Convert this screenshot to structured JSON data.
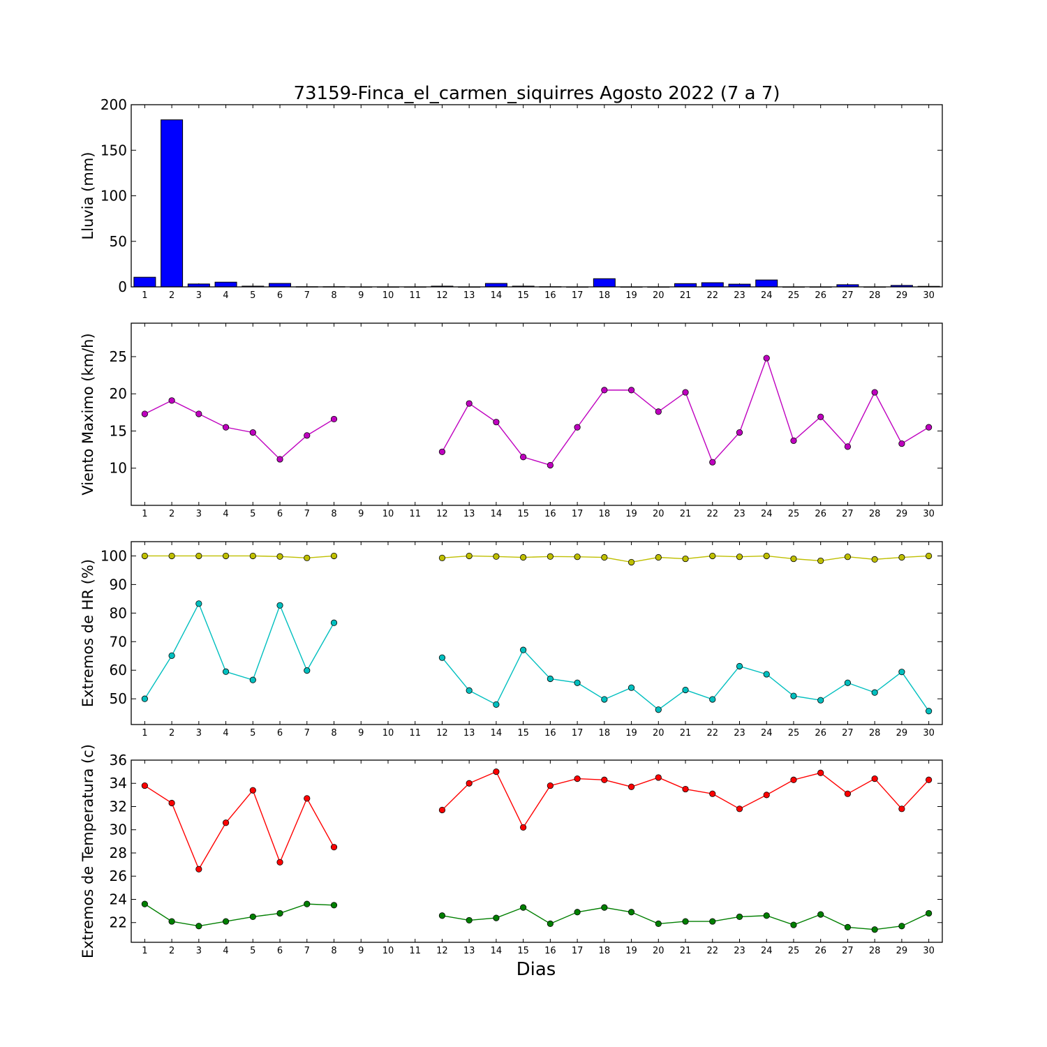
{
  "title": "73159-Finca_el_carmen_siquirres Agosto 2022  (7 a 7)",
  "xlabel": "Dias",
  "chart_data": [
    {
      "type": "bar",
      "ylabel": "Lluvia (mm)",
      "ylim": [
        0,
        200
      ],
      "yticks": [
        0,
        50,
        100,
        150,
        200
      ],
      "categories": [
        "1",
        "2",
        "3",
        "4",
        "5",
        "6",
        "7",
        "8",
        "9",
        "10",
        "11",
        "12",
        "13",
        "14",
        "15",
        "16",
        "17",
        "18",
        "19",
        "20",
        "21",
        "22",
        "23",
        "24",
        "25",
        "26",
        "27",
        "28",
        "29",
        "30"
      ],
      "series": [
        {
          "color": "#0000ff",
          "values": [
            10.6,
            183.4,
            3.2,
            5.2,
            0.8,
            3.8,
            0.2,
            0.2,
            0,
            0,
            0,
            0.8,
            0,
            3.8,
            0.8,
            0.2,
            0,
            9.0,
            0,
            0,
            3.6,
            4.6,
            3.0,
            7.6,
            0,
            0,
            2.4,
            0,
            1.6,
            0.6
          ]
        }
      ],
      "grid": false
    },
    {
      "type": "line",
      "ylabel": "Viento Maximo (km/h)",
      "ylim": [
        5,
        29.5
      ],
      "yticks": [
        10,
        15,
        20,
        25
      ],
      "x": [
        1,
        2,
        3,
        4,
        5,
        6,
        7,
        8,
        9,
        10,
        11,
        12,
        13,
        14,
        15,
        16,
        17,
        18,
        19,
        20,
        21,
        22,
        23,
        24,
        25,
        26,
        27,
        28,
        29,
        30
      ],
      "series": [
        {
          "color": "#bf00bf",
          "values": [
            17.3,
            19.1,
            17.3,
            15.5,
            14.8,
            11.2,
            14.4,
            16.6,
            null,
            null,
            null,
            12.2,
            18.7,
            16.2,
            11.5,
            10.4,
            15.5,
            20.5,
            20.5,
            17.6,
            20.2,
            10.8,
            14.8,
            24.8,
            13.7,
            16.9,
            12.9,
            20.2,
            13.3,
            15.5
          ]
        }
      ],
      "grid": false
    },
    {
      "type": "line",
      "ylabel": "Extremos de HR (%)",
      "ylim": [
        41,
        105
      ],
      "yticks": [
        50,
        60,
        70,
        80,
        90,
        100
      ],
      "x": [
        1,
        2,
        3,
        4,
        5,
        6,
        7,
        8,
        9,
        10,
        11,
        12,
        13,
        14,
        15,
        16,
        17,
        18,
        19,
        20,
        21,
        22,
        23,
        24,
        25,
        26,
        27,
        28,
        29,
        30
      ],
      "series": [
        {
          "color": "#bfbf00",
          "values": [
            100,
            100,
            100,
            100,
            100,
            99.8,
            99.3,
            100,
            null,
            null,
            null,
            99.3,
            100,
            99.8,
            99.5,
            99.8,
            99.7,
            99.5,
            97.8,
            99.5,
            99.0,
            100,
            99.7,
            100,
            99.0,
            98.3,
            99.7,
            98.8,
            99.5,
            100
          ]
        },
        {
          "color": "#00bfbf",
          "values": [
            50.0,
            65.1,
            83.3,
            59.5,
            56.6,
            82.7,
            59.9,
            76.6,
            null,
            null,
            null,
            64.4,
            52.9,
            48.0,
            67.1,
            57.0,
            55.6,
            49.8,
            53.9,
            46.2,
            53.1,
            49.8,
            61.4,
            58.6,
            51.0,
            49.5,
            55.6,
            52.2,
            59.4,
            45.7
          ]
        }
      ],
      "grid": false
    },
    {
      "type": "line",
      "ylabel": "Extremos de Temperatura (c)",
      "ylim": [
        20.3,
        36
      ],
      "yticks": [
        22,
        24,
        26,
        28,
        30,
        32,
        34,
        36
      ],
      "x": [
        1,
        2,
        3,
        4,
        5,
        6,
        7,
        8,
        9,
        10,
        11,
        12,
        13,
        14,
        15,
        16,
        17,
        18,
        19,
        20,
        21,
        22,
        23,
        24,
        25,
        26,
        27,
        28,
        29,
        30
      ],
      "series": [
        {
          "color": "#ff0000",
          "values": [
            33.8,
            32.3,
            26.6,
            30.6,
            33.4,
            27.2,
            32.7,
            28.5,
            null,
            null,
            null,
            31.7,
            34.0,
            35.0,
            30.2,
            33.8,
            34.4,
            34.3,
            33.7,
            34.5,
            33.5,
            33.1,
            31.8,
            33.0,
            34.3,
            34.9,
            33.1,
            34.4,
            31.8,
            34.3
          ]
        },
        {
          "color": "#007f00",
          "values": [
            23.6,
            22.1,
            21.7,
            22.1,
            22.5,
            22.8,
            23.6,
            23.5,
            null,
            null,
            null,
            22.6,
            22.2,
            22.4,
            23.3,
            21.9,
            22.9,
            23.3,
            22.9,
            21.9,
            22.1,
            22.1,
            22.5,
            22.6,
            21.8,
            22.7,
            21.6,
            21.4,
            21.7,
            22.8
          ]
        }
      ],
      "grid": false
    }
  ]
}
